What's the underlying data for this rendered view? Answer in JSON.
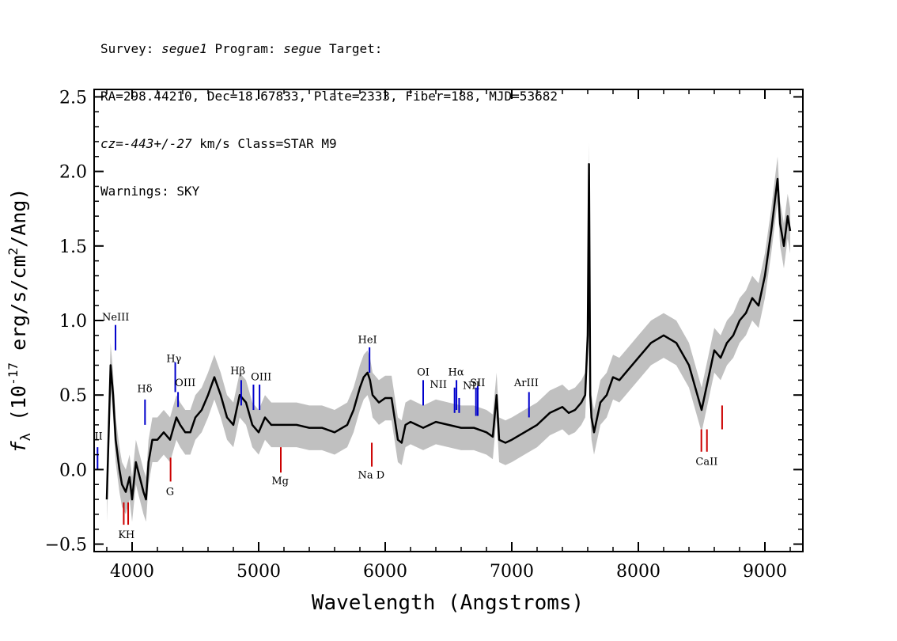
{
  "header": {
    "line1_a": "Survey: ",
    "survey": "segue1",
    "line1_b": " Program: ",
    "program": "segue",
    "line1_c": " Target:",
    "line2": "RA=298.44210, Dec=18.67833, Plate=2333, Fiber=188, MJD=53682",
    "cz_label": "cz",
    "cz_eq": "=",
    "cz_value": "-443+/-27",
    "cz_rest": " km/s Class=STAR M9",
    "line4": "Warnings: SKY"
  },
  "colors": {
    "flux": "#000000",
    "error_band": "#c0c0c0",
    "emission_lines": "#0000cc",
    "absorption_lines": "#cc0000"
  },
  "chart_data": {
    "type": "line",
    "title": "",
    "xlabel": "Wavelength (Angstroms)",
    "ylabel_symbol": "f",
    "ylabel_sub": "λ",
    "ylabel_pre": " (10",
    "ylabel_exp": "-17",
    "ylabel_mid": " erg/s/cm",
    "ylabel_exp2": "2",
    "ylabel_post": "/Ang)",
    "xlim": [
      3700,
      9300
    ],
    "ylim": [
      -0.55,
      2.55
    ],
    "xticks": [
      4000,
      5000,
      6000,
      7000,
      8000,
      9000
    ],
    "xtick_labels": [
      "4000",
      "5000",
      "6000",
      "7000",
      "8000",
      "9000"
    ],
    "yticks": [
      -0.5,
      0.0,
      0.5,
      1.0,
      1.5,
      2.0,
      2.5
    ],
    "ytick_labels": [
      "−0.5",
      "0.0",
      "0.5",
      "1.0",
      "1.5",
      "2.0",
      "2.5"
    ],
    "series": [
      {
        "x": [
          3800,
          3830,
          3850,
          3870,
          3900,
          3920,
          3950,
          3980,
          4000,
          4030,
          4060,
          4090,
          4110,
          4130,
          4160,
          4200,
          4250,
          4300,
          4350,
          4380,
          4420,
          4460,
          4500,
          4550,
          4600,
          4650,
          4700,
          4750,
          4800,
          4850,
          4900,
          4950,
          5000,
          5050,
          5100,
          5150,
          5200,
          5300,
          5400,
          5500,
          5600,
          5700,
          5750,
          5800,
          5830,
          5860,
          5880,
          5900,
          5950,
          6000,
          6050,
          6100,
          6130,
          6160,
          6200,
          6250,
          6300,
          6350,
          6400,
          6500,
          6600,
          6700,
          6800,
          6850,
          6880,
          6900,
          6950,
          7000,
          7100,
          7200,
          7300,
          7400,
          7450,
          7500,
          7550,
          7580,
          7600,
          7610,
          7620,
          7630,
          7650,
          7700,
          7750,
          7800,
          7850,
          7900,
          8000,
          8100,
          8200,
          8300,
          8400,
          8450,
          8500,
          8550,
          8600,
          8650,
          8700,
          8750,
          8800,
          8850,
          8900,
          8950,
          9000,
          9050,
          9100,
          9120,
          9150,
          9180,
          9200
        ],
        "y": [
          -0.2,
          0.7,
          0.5,
          0.2,
          0.0,
          -0.1,
          -0.15,
          -0.05,
          -0.2,
          0.05,
          -0.05,
          -0.15,
          -0.2,
          0.05,
          0.2,
          0.2,
          0.25,
          0.2,
          0.35,
          0.3,
          0.25,
          0.25,
          0.35,
          0.4,
          0.5,
          0.62,
          0.5,
          0.35,
          0.3,
          0.5,
          0.45,
          0.3,
          0.25,
          0.35,
          0.3,
          0.3,
          0.3,
          0.3,
          0.28,
          0.28,
          0.25,
          0.3,
          0.4,
          0.55,
          0.62,
          0.65,
          0.6,
          0.5,
          0.45,
          0.48,
          0.48,
          0.2,
          0.18,
          0.3,
          0.32,
          0.3,
          0.28,
          0.3,
          0.32,
          0.3,
          0.28,
          0.28,
          0.25,
          0.22,
          0.5,
          0.2,
          0.18,
          0.2,
          0.25,
          0.3,
          0.38,
          0.42,
          0.38,
          0.4,
          0.45,
          0.5,
          0.9,
          2.05,
          0.5,
          0.35,
          0.25,
          0.45,
          0.5,
          0.62,
          0.6,
          0.65,
          0.75,
          0.85,
          0.9,
          0.85,
          0.7,
          0.55,
          0.4,
          0.6,
          0.8,
          0.75,
          0.85,
          0.9,
          1.0,
          1.05,
          1.15,
          1.1,
          1.3,
          1.6,
          1.95,
          1.65,
          1.5,
          1.7,
          1.6
        ],
        "err": 0.15
      }
    ],
    "line_markers": [
      {
        "label": "NeIII",
        "x": 3869,
        "y0": 0.8,
        "y1": 0.97,
        "kind": "emission",
        "lx": 3870,
        "ly": 1.0
      },
      {
        "label": "II",
        "x": 3727,
        "y0": 0.0,
        "y1": 0.15,
        "kind": "emission",
        "lx": 3735,
        "ly": 0.2
      },
      {
        "label": "Hδ",
        "x": 4102,
        "y0": 0.3,
        "y1": 0.47,
        "kind": "emission",
        "lx": 4100,
        "ly": 0.52
      },
      {
        "label": "Hγ",
        "x": 4341,
        "y0": 0.52,
        "y1": 0.72,
        "kind": "emission",
        "lx": 4330,
        "ly": 0.72
      },
      {
        "label": "OIII",
        "x": 4363,
        "y0": 0.42,
        "y1": 0.52,
        "kind": "emission",
        "lx": 4420,
        "ly": 0.56
      },
      {
        "label": "Hβ",
        "x": 4862,
        "y0": 0.43,
        "y1": 0.6,
        "kind": "emission",
        "lx": 4835,
        "ly": 0.64
      },
      {
        "label": "OIII",
        "x": 4959,
        "y0": 0.4,
        "y1": 0.57,
        "kind": "emission",
        "lx": 5020,
        "ly": 0.6
      },
      {
        "label": "",
        "x": 5007,
        "y0": 0.4,
        "y1": 0.57,
        "kind": "emission"
      },
      {
        "label": "HeI",
        "x": 5876,
        "y0": 0.65,
        "y1": 0.82,
        "kind": "emission",
        "lx": 5860,
        "ly": 0.85
      },
      {
        "label": "OI",
        "x": 6300,
        "y0": 0.43,
        "y1": 0.6,
        "kind": "emission",
        "lx": 6300,
        "ly": 0.63
      },
      {
        "label": "NII",
        "x": 6548,
        "y0": 0.38,
        "y1": 0.55,
        "kind": "emission",
        "lx": 6420,
        "ly": 0.55
      },
      {
        "label": "Hα",
        "x": 6563,
        "y0": 0.4,
        "y1": 0.6,
        "kind": "emission",
        "lx": 6560,
        "ly": 0.63
      },
      {
        "label": "",
        "x": 6584,
        "y0": 0.38,
        "y1": 0.48,
        "kind": "emission"
      },
      {
        "label": "NII",
        "x": 6717,
        "y0": 0.36,
        "y1": 0.55,
        "kind": "emission",
        "lx": 6680,
        "ly": 0.54
      },
      {
        "label": "SII",
        "x": 6731,
        "y0": 0.36,
        "y1": 0.56,
        "kind": "emission",
        "lx": 6730,
        "ly": 0.56
      },
      {
        "label": "ArIII",
        "x": 7136,
        "y0": 0.35,
        "y1": 0.52,
        "kind": "emission",
        "lx": 7115,
        "ly": 0.56
      },
      {
        "label": "K",
        "x": 3934,
        "y0": -0.37,
        "y1": -0.22,
        "kind": "absorption",
        "lx": 3920,
        "ly": -0.46
      },
      {
        "label": "H",
        "x": 3969,
        "y0": -0.37,
        "y1": -0.22,
        "kind": "absorption",
        "lx": 3985,
        "ly": -0.46
      },
      {
        "label": "G",
        "x": 4304,
        "y0": -0.08,
        "y1": 0.08,
        "kind": "absorption",
        "lx": 4300,
        "ly": -0.17
      },
      {
        "label": "Mg",
        "x": 5175,
        "y0": -0.02,
        "y1": 0.15,
        "kind": "absorption",
        "lx": 5170,
        "ly": -0.1
      },
      {
        "label": "Na D",
        "x": 5894,
        "y0": 0.02,
        "y1": 0.18,
        "kind": "absorption",
        "lx": 5890,
        "ly": -0.06
      },
      {
        "label": "CaII",
        "x": 8498,
        "y0": 0.12,
        "y1": 0.27,
        "kind": "absorption",
        "lx": 8540,
        "ly": 0.03
      },
      {
        "label": "",
        "x": 8542,
        "y0": 0.12,
        "y1": 0.27,
        "kind": "absorption"
      },
      {
        "label": "",
        "x": 8662,
        "y0": 0.27,
        "y1": 0.43,
        "kind": "absorption"
      }
    ]
  }
}
